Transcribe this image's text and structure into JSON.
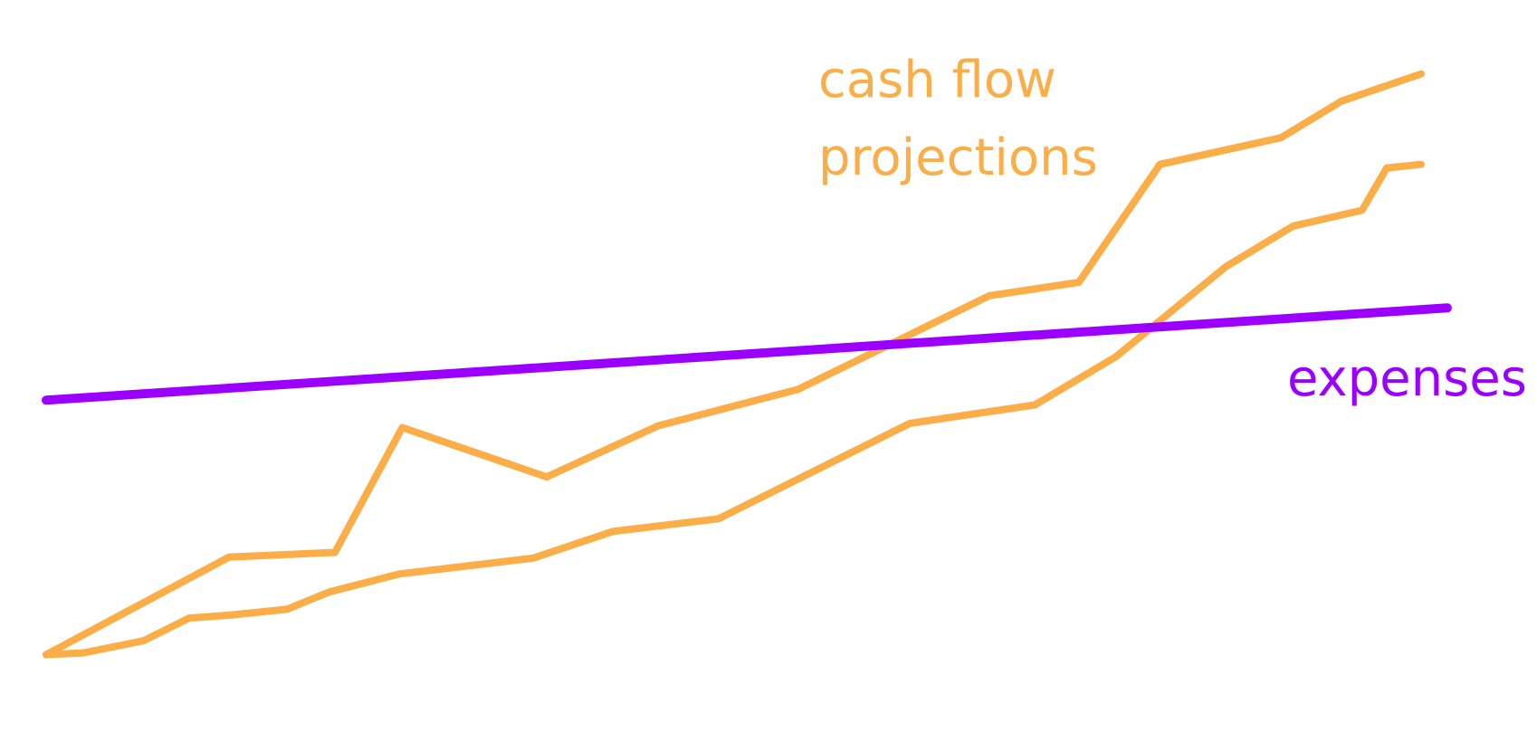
{
  "chart_data": {
    "type": "line",
    "xlim": [
      0,
      100
    ],
    "ylim": [
      0,
      100
    ],
    "series": [
      {
        "name": "cash flow projections",
        "color": "#fbad47",
        "x": [
          0,
          13.3,
          21.0,
          25.9,
          36.4,
          44.5,
          54.7,
          68.6,
          75.1,
          81.0,
          89.8,
          94.2,
          100
        ],
        "values": [
          0,
          16.8,
          17.6,
          39.1,
          30.6,
          39.4,
          45.7,
          61.8,
          64.1,
          84.4,
          89.0,
          95.3,
          100
        ]
      },
      {
        "color": "#fbad47",
        "x": [
          0,
          2.7,
          7.1,
          10.4,
          13.3,
          17.5,
          20.6,
          25.7,
          35.4,
          41.2,
          48.9,
          62.8,
          71.9,
          77.8,
          85.8,
          90.7,
          95.7,
          97.5,
          100
        ],
        "values": [
          0,
          0.3,
          2.4,
          6.3,
          6.8,
          7.8,
          10.8,
          13.9,
          16.6,
          21.2,
          23.4,
          39.8,
          43.0,
          51.3,
          66.8,
          73.8,
          76.5,
          83.8,
          84.4
        ]
      },
      {
        "name": "expenses",
        "color": "#9b00ff",
        "x": [
          0,
          101.9
        ],
        "values": [
          43.8,
          59.7
        ]
      }
    ]
  }
}
